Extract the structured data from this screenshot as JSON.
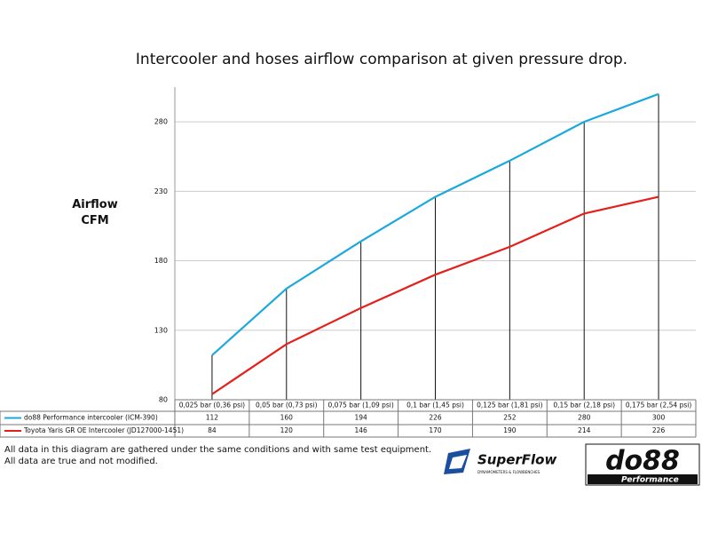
{
  "chart_data": {
    "type": "line",
    "title": "Intercooler and hoses airflow comparison at given pressure drop.",
    "y_label": "Airflow CFM",
    "categories": [
      "0,025 bar (0,36 psi)",
      "0,05 bar (0,73 psi)",
      "0,075 bar (1,09 psi)",
      "0,1 bar (1,45 psi)",
      "0,125 bar (1,81 psi)",
      "0,15 bar (2,18 psi)",
      "0,175 bar (2,54 psi)"
    ],
    "series": [
      {
        "name": "do88 Performance intercooler (ICM-390)",
        "color": "#1ba8dc",
        "values": [
          112,
          160,
          194,
          226,
          252,
          280,
          300
        ]
      },
      {
        "name": "Toyota Yaris GR OE Intercooler (JD127000-1451)",
        "color": "#e3201b",
        "values": [
          84,
          120,
          146,
          170,
          190,
          214,
          226
        ]
      }
    ],
    "ylim": [
      80,
      305
    ],
    "yticks": [
      80,
      130,
      180,
      230,
      280
    ],
    "grid": true,
    "footnotes": [
      "All data in this diagram are gathered under the same conditions and with same test equipment.",
      "All data are true and not modified."
    ],
    "logos": {
      "superflow": "SuperFlow",
      "superflow_sub": "DYNAMOMETERS & FLOWBENCHES",
      "do88": "do88",
      "do88_sub": "Performance"
    }
  }
}
